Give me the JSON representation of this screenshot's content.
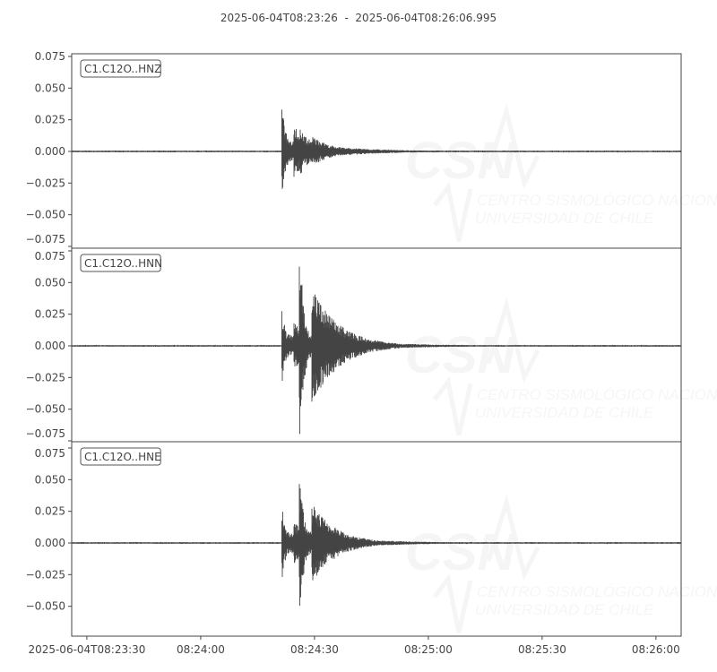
{
  "title": "2025-06-04T08:23:26  -  2025-06-04T08:26:06.995",
  "watermark": {
    "logo": "CSN",
    "line1": "CENTRO SISMOLÓGICO NACIONAL",
    "line2": "UNIVERSIDAD DE CHILE"
  },
  "chart_data": {
    "type": "line",
    "x_start": "2025-06-04T08:23:26",
    "x_end": "2025-06-04T08:26:06.995",
    "xticks": [
      "2025-06-04T08:23:30",
      "08:24:00",
      "08:24:30",
      "08:25:00",
      "08:25:30",
      "08:26:00"
    ],
    "xtick_seconds": [
      4,
      34,
      64,
      94,
      124,
      154
    ],
    "ylim": [
      -0.075,
      0.075
    ],
    "yticks": [
      "0.075",
      "0.050",
      "0.025",
      "0.000",
      "−0.025",
      "−0.050",
      "−0.075"
    ],
    "ytick_values": [
      0.075,
      0.05,
      0.025,
      0,
      -0.025,
      -0.05,
      -0.075
    ],
    "line_color": "#444444",
    "grid": false,
    "series": [
      {
        "name": "C1.C12O..HNZ",
        "onset_s": 55.3,
        "peaks": [
          {
            "t_s": 55.5,
            "max": 0.035,
            "min": -0.034
          },
          {
            "t_s": 60.5,
            "max": 0.02,
            "min": -0.019
          }
        ],
        "decay_s": 14
      },
      {
        "name": "C1.C12O..HNN",
        "onset_s": 55.3,
        "peaks": [
          {
            "t_s": 55.5,
            "max": 0.028,
            "min": -0.028
          },
          {
            "t_s": 60.3,
            "max": 0.07,
            "min": -0.069
          }
        ],
        "decay_s": 18
      },
      {
        "name": "C1.C12O..HNE",
        "onset_s": 55.3,
        "peaks": [
          {
            "t_s": 55.5,
            "max": 0.028,
            "min": -0.026
          },
          {
            "t_s": 60.3,
            "max": 0.051,
            "min": -0.045
          }
        ],
        "decay_s": 16
      }
    ]
  }
}
